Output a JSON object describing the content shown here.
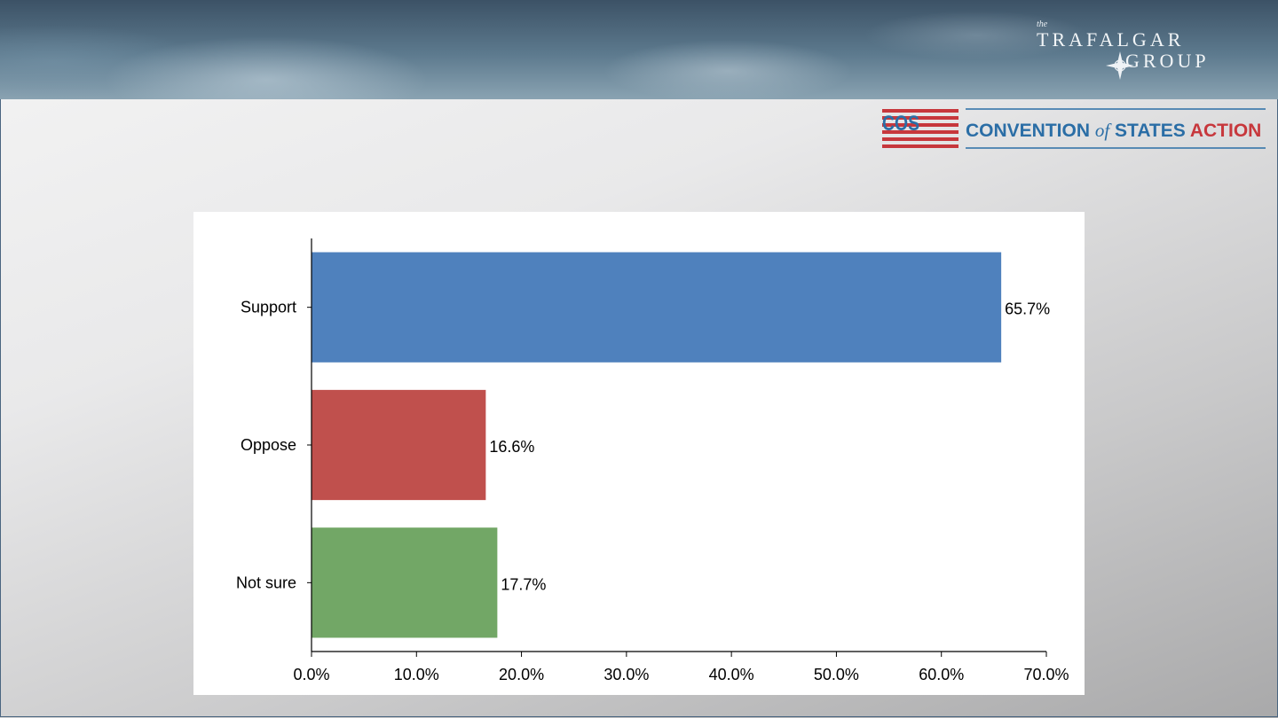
{
  "header": {
    "logo": {
      "article": "the",
      "line1": "TRAFALGAR",
      "line2": "GROUP"
    }
  },
  "sponsor": {
    "badge": "COS",
    "name_part1": "CONVENTION",
    "name_part2": "of",
    "name_part3": "STATES",
    "name_part4": "ACTION",
    "colors": {
      "blue": "#2b6ea6",
      "red": "#c7373c"
    }
  },
  "chart_data": {
    "type": "bar",
    "orientation": "horizontal",
    "categories": [
      "Support",
      "Oppose",
      "Not sure"
    ],
    "values": [
      65.7,
      16.6,
      17.7
    ],
    "data_labels": [
      "65.7%",
      "16.6%",
      "17.7%"
    ],
    "colors": [
      "#4f81bd",
      "#c0504d",
      "#72a766"
    ],
    "xlim": [
      0,
      70
    ],
    "x_ticks": [
      0,
      10,
      20,
      30,
      40,
      50,
      60,
      70
    ],
    "x_tick_labels": [
      "0.0%",
      "10.0%",
      "20.0%",
      "30.0%",
      "40.0%",
      "50.0%",
      "60.0%",
      "70.0%"
    ],
    "grid": false,
    "legend": "none"
  }
}
